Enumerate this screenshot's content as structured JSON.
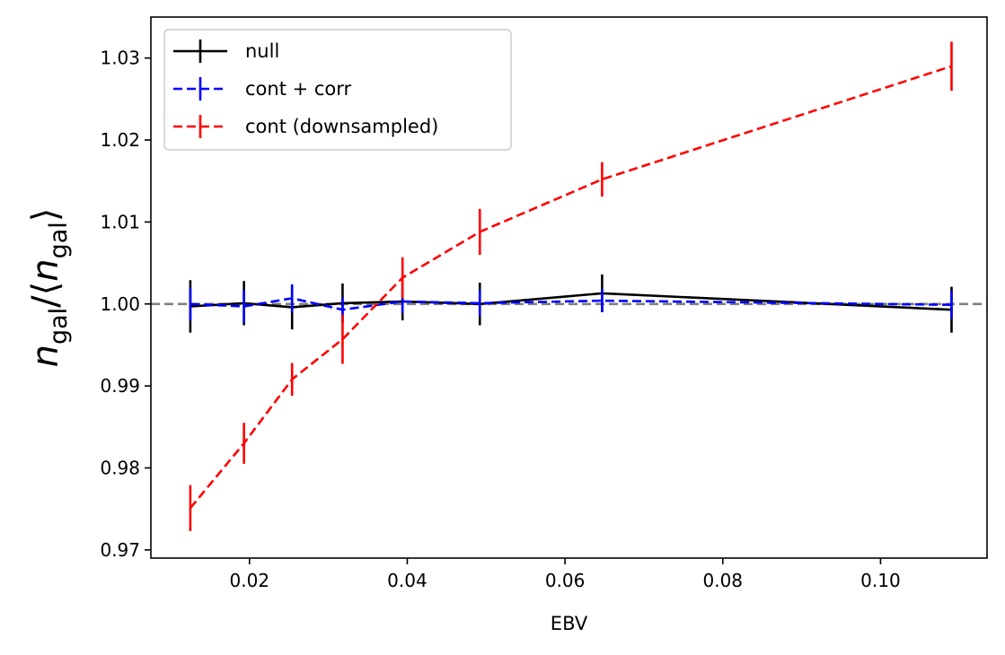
{
  "chart_data": {
    "type": "line",
    "xlabel": "EBV",
    "ylabel_main": "n",
    "ylabel_sub": "gal",
    "xlim": [
      0.0075,
      0.1135
    ],
    "ylim": [
      0.969,
      1.035
    ],
    "xticks": [
      0.02,
      0.04,
      0.06,
      0.08,
      0.1
    ],
    "xtick_labels": [
      "0.02",
      "0.04",
      "0.06",
      "0.08",
      "0.10"
    ],
    "yticks": [
      0.97,
      0.98,
      0.99,
      1.0,
      1.01,
      1.02,
      1.03
    ],
    "ytick_labels": [
      "0.97",
      "0.98",
      "0.99",
      "1.00",
      "1.01",
      "1.02",
      "1.03"
    ],
    "reference_line": {
      "y": 1.0,
      "color": "#808080",
      "style": "dashed"
    },
    "legend_position": "top-left",
    "series": [
      {
        "name": "null",
        "color": "#000000",
        "style": "solid",
        "x": [
          0.0125,
          0.0193,
          0.0254,
          0.0318,
          0.0394,
          0.0492,
          0.0647,
          0.109
        ],
        "y": [
          0.9997,
          1.0001,
          0.9996,
          1.0001,
          1.0003,
          1.0,
          1.0013,
          0.9993
        ],
        "err": [
          0.0032,
          0.0027,
          0.0027,
          0.0024,
          0.0023,
          0.0026,
          0.0023,
          0.0028
        ]
      },
      {
        "name": "cont + corr",
        "color": "#0000ff",
        "style": "dashed",
        "x": [
          0.0125,
          0.0193,
          0.0254,
          0.0318,
          0.0394,
          0.0492,
          0.0647,
          0.109
        ],
        "y": [
          1.0,
          0.9997,
          1.0007,
          0.9993,
          1.0003,
          1.0001,
          1.0004,
          0.9999
        ],
        "err": [
          0.002,
          0.002,
          0.0017,
          0.0015,
          0.0014,
          0.0016,
          0.0014,
          0.0017
        ]
      },
      {
        "name": "cont (downsampled)",
        "color": "#ff0000",
        "style": "dashed",
        "x": [
          0.0125,
          0.0193,
          0.0254,
          0.0318,
          0.0394,
          0.0492,
          0.0647,
          0.109
        ],
        "y": [
          0.9751,
          0.983,
          0.9908,
          0.9957,
          1.0032,
          1.0088,
          1.0152,
          1.029
        ],
        "err": [
          0.0028,
          0.0025,
          0.002,
          0.003,
          0.0025,
          0.0028,
          0.0021,
          0.003
        ]
      }
    ]
  }
}
